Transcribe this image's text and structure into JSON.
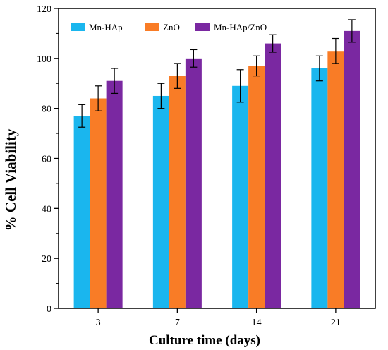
{
  "chart_data": {
    "type": "bar",
    "title": "",
    "xlabel": "Culture time (days)",
    "ylabel": "%  Cell Viability",
    "categories": [
      "3",
      "7",
      "14",
      "21"
    ],
    "ylim": [
      0,
      120
    ],
    "yticks": [
      0,
      20,
      40,
      60,
      80,
      100,
      120
    ],
    "grid": false,
    "legend_position": "top-left",
    "series": [
      {
        "name": "Mn-HAp",
        "color": "#1ab6ee",
        "values": [
          77,
          85,
          89,
          96
        ],
        "errors": [
          4.5,
          5,
          6.5,
          5
        ]
      },
      {
        "name": "ZnO",
        "color": "#f97c26",
        "values": [
          84,
          93,
          97,
          103
        ],
        "errors": [
          5,
          5,
          4,
          5
        ]
      },
      {
        "name": "Mn-HAp/ZnO",
        "color": "#7a28a1",
        "values": [
          91,
          100,
          106,
          111
        ],
        "errors": [
          5,
          3.5,
          3.5,
          4.5
        ]
      }
    ]
  }
}
